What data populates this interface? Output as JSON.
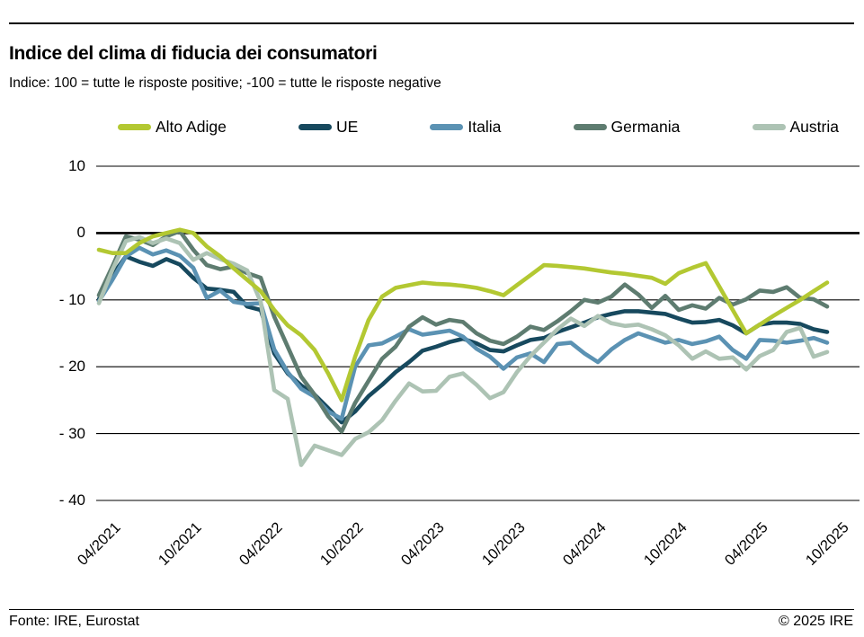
{
  "header": {
    "title": "Indice del clima di fiducia dei consumatori",
    "subtitle": "Indice: 100 = tutte le risposte positive; -100 =  tutte le risposte negative"
  },
  "footer": {
    "source": "Fonte: IRE, Eurostat",
    "copyright": "© 2025 IRE"
  },
  "chart_data": {
    "type": "line",
    "frequency": "monthly",
    "x_start": "04/2021",
    "x_end": "10/2025",
    "x_tick_labels": [
      "04/2021",
      "10/2021",
      "04/2022",
      "10/2022",
      "04/2023",
      "10/2023",
      "04/2024",
      "10/2024",
      "04/2025",
      "10/2025"
    ],
    "x_tick_step_months": 6,
    "y_ticks": [
      10,
      0,
      -10,
      -20,
      -30,
      -40
    ],
    "y_tick_labels": [
      "10",
      "0",
      "- 10",
      "- 20",
      "- 30",
      "- 40"
    ],
    "ylim": [
      -40,
      10
    ],
    "grid": "horizontal",
    "zero_line_emphasized": true,
    "legend_position": "top",
    "series": [
      {
        "name": "Alto Adige",
        "color": "#b3c832",
        "values": [
          -2.5,
          -3.0,
          -3.0,
          -1.5,
          -0.5,
          0.0,
          0.5,
          0.0,
          -2.0,
          -3.5,
          -5.3,
          -7.0,
          -8.7,
          -11.5,
          -13.8,
          -15.3,
          -17.5,
          -21.0,
          -25.0,
          -18.5,
          -13.0,
          -9.5,
          -8.2,
          -7.8,
          -7.4,
          -7.6,
          -7.7,
          -7.9,
          -8.2,
          -8.7,
          -9.3,
          -7.8,
          -6.3,
          -4.8,
          -4.9,
          -5.1,
          -5.3,
          -5.6,
          -5.9,
          -6.1,
          -6.4,
          -6.7,
          -7.6,
          -6.0,
          -5.2,
          -4.5,
          -8.0,
          -11.5,
          -15.0,
          -13.7,
          -12.4,
          -11.2,
          -10.0,
          -8.7,
          -7.4
        ]
      },
      {
        "name": "UE",
        "color": "#17495e",
        "values": [
          -9.9,
          -6.3,
          -3.5,
          -4.3,
          -4.9,
          -3.9,
          -4.7,
          -6.7,
          -8.3,
          -8.5,
          -8.8,
          -11.0,
          -11.5,
          -18.0,
          -21.0,
          -22.8,
          -24.2,
          -26.2,
          -28.3,
          -26.7,
          -24.4,
          -22.7,
          -20.8,
          -19.3,
          -17.6,
          -17.0,
          -16.3,
          -15.8,
          -16.5,
          -17.5,
          -17.7,
          -16.8,
          -16.0,
          -15.7,
          -14.8,
          -14.1,
          -13.4,
          -12.6,
          -12.1,
          -11.7,
          -11.7,
          -11.9,
          -12.1,
          -12.8,
          -13.4,
          -13.3,
          -13.0,
          -13.8,
          -15.0,
          -13.7,
          -13.4,
          -13.4,
          -13.6,
          -14.4,
          -14.8
        ]
      },
      {
        "name": "Italia",
        "color": "#5b92b3",
        "values": [
          -10.2,
          -7.0,
          -3.5,
          -2.2,
          -3.2,
          -2.6,
          -3.4,
          -5.2,
          -9.7,
          -8.6,
          -10.3,
          -10.6,
          -10.5,
          -17.4,
          -20.8,
          -23.3,
          -24.5,
          -26.7,
          -27.8,
          -20.0,
          -16.8,
          -16.5,
          -15.5,
          -14.4,
          -15.2,
          -14.9,
          -14.6,
          -15.5,
          -17.3,
          -18.5,
          -20.3,
          -18.6,
          -18.0,
          -19.3,
          -16.6,
          -16.4,
          -18.0,
          -19.3,
          -17.4,
          -16.0,
          -15.0,
          -15.7,
          -16.4,
          -16.0,
          -16.6,
          -16.2,
          -15.5,
          -17.5,
          -18.8,
          -16.0,
          -16.1,
          -16.4,
          -16.1,
          -15.7,
          -16.4
        ]
      },
      {
        "name": "Germania",
        "color": "#5e7c70",
        "values": [
          -9.3,
          -5.0,
          -0.5,
          -1.0,
          -1.8,
          -0.5,
          0.3,
          -2.5,
          -4.8,
          -5.4,
          -5.0,
          -6.0,
          -6.7,
          -12.5,
          -17.0,
          -21.5,
          -24.2,
          -27.4,
          -29.7,
          -25.4,
          -22.1,
          -18.8,
          -17.0,
          -14.0,
          -12.6,
          -13.7,
          -13.0,
          -13.3,
          -15.0,
          -16.1,
          -16.6,
          -15.5,
          -14.0,
          -14.5,
          -13.2,
          -11.7,
          -10.0,
          -10.4,
          -9.5,
          -7.7,
          -9.2,
          -11.2,
          -9.4,
          -11.5,
          -10.8,
          -11.3,
          -9.7,
          -10.7,
          -9.9,
          -8.6,
          -8.8,
          -8.1,
          -9.7,
          -9.9,
          -11.0
        ]
      },
      {
        "name": "Austria",
        "color": "#adc3b4",
        "values": [
          -10.5,
          -5.5,
          -1.2,
          -0.6,
          -1.5,
          -0.8,
          -1.5,
          -4.0,
          -3.0,
          -3.9,
          -4.6,
          -5.6,
          -10.3,
          -23.5,
          -24.8,
          -34.7,
          -31.8,
          -32.5,
          -33.2,
          -30.8,
          -29.8,
          -28.0,
          -25.1,
          -22.5,
          -23.7,
          -23.6,
          -21.5,
          -21.0,
          -22.7,
          -24.7,
          -23.8,
          -20.8,
          -18.4,
          -16.4,
          -14.4,
          -12.8,
          -13.9,
          -12.4,
          -13.5,
          -13.9,
          -13.7,
          -14.4,
          -15.3,
          -16.8,
          -18.8,
          -17.7,
          -18.8,
          -18.6,
          -20.4,
          -18.4,
          -17.5,
          -14.8,
          -14.2,
          -18.5,
          -17.8
        ]
      }
    ]
  }
}
